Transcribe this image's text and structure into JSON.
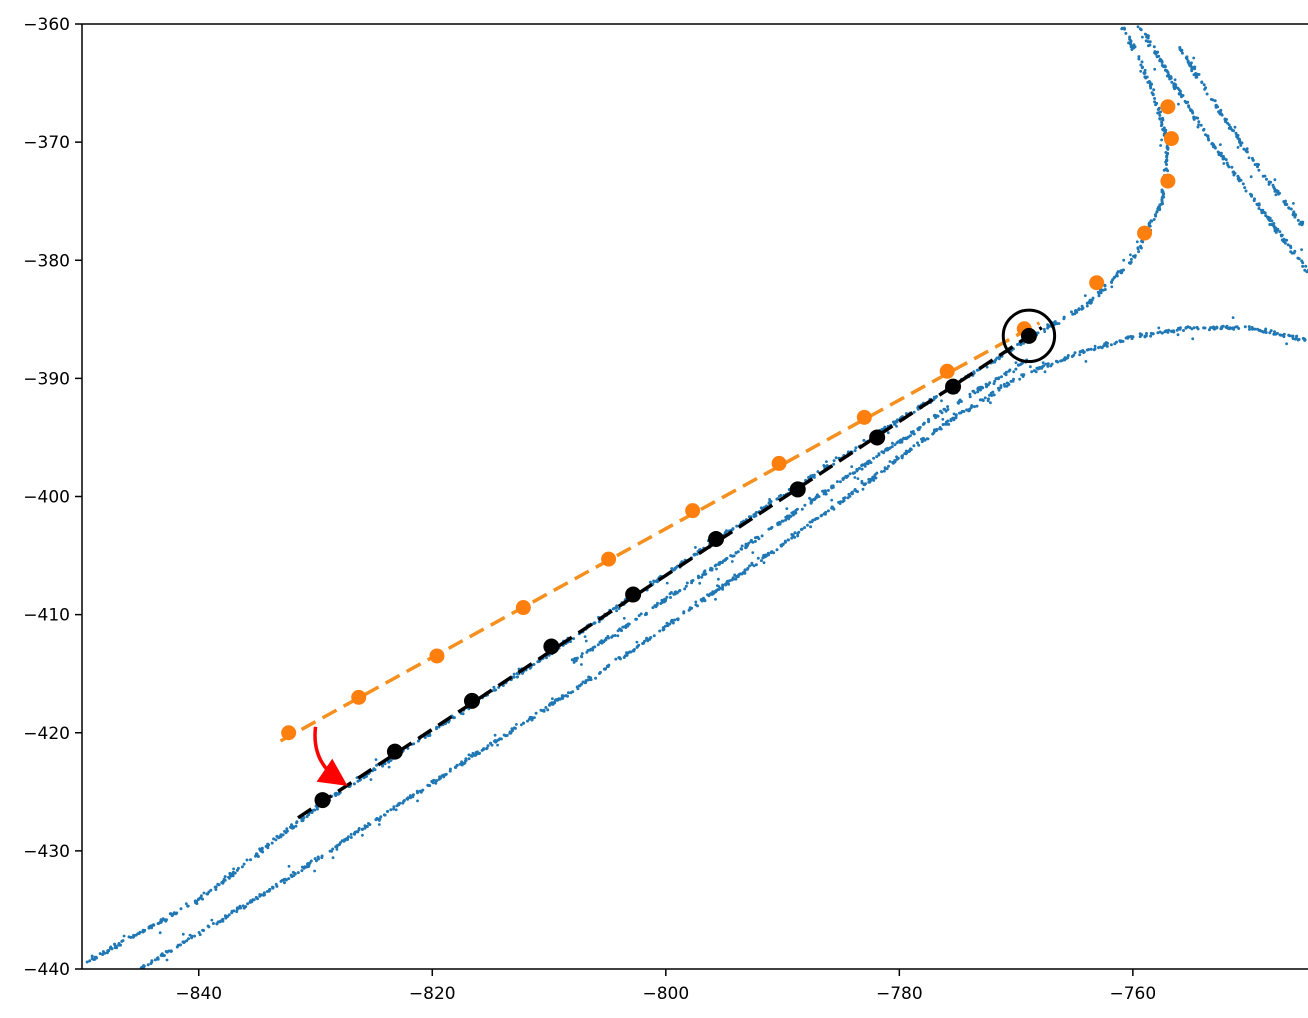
{
  "chart_data": {
    "type": "scatter",
    "title": "",
    "xlabel": "",
    "ylabel": "",
    "xlim": [
      -850,
      -745
    ],
    "ylim": [
      -440,
      -360
    ],
    "xticks": [
      -840,
      -820,
      -800,
      -780,
      -760
    ],
    "yticks": [
      -360,
      -370,
      -380,
      -390,
      -400,
      -410,
      -420,
      -430,
      -440
    ],
    "xtick_labels": [
      "−840",
      "−820",
      "−800",
      "−780",
      "−760"
    ],
    "ytick_labels": [
      "−360",
      "−370",
      "−380",
      "−390",
      "−400",
      "−410",
      "−420",
      "−430",
      "−440"
    ],
    "grid": false,
    "legend": "none",
    "colors": {
      "lanes": "#1f77b4",
      "orange": "#ff7f0e",
      "orange_line": "#f5901f",
      "black": "#000000",
      "arrow": "#ff0000"
    },
    "series": [
      {
        "marker": "orange-points",
        "points": [
          [
            -832.3,
            -420.0
          ],
          [
            -826.3,
            -417.0
          ],
          [
            -819.6,
            -413.5
          ],
          [
            -812.2,
            -409.4
          ],
          [
            -804.9,
            -405.3
          ],
          [
            -797.7,
            -401.2
          ],
          [
            -790.3,
            -397.2
          ],
          [
            -783.0,
            -393.3
          ],
          [
            -775.9,
            -389.4
          ],
          [
            -769.3,
            -385.8
          ],
          [
            -763.1,
            -381.9
          ],
          [
            -759.0,
            -377.7
          ],
          [
            -757.0,
            -373.3
          ],
          [
            -756.7,
            -369.7
          ],
          [
            -757.0,
            -367.0
          ]
        ]
      },
      {
        "marker": "orange-dashed-fit",
        "points": [
          [
            -833.0,
            -420.7
          ],
          [
            -768.0,
            -385.3
          ]
        ]
      },
      {
        "marker": "black-points",
        "points": [
          [
            -829.4,
            -425.7
          ],
          [
            -823.2,
            -421.6
          ],
          [
            -816.6,
            -417.3
          ],
          [
            -809.8,
            -412.7
          ],
          [
            -802.8,
            -408.3
          ],
          [
            -795.7,
            -403.6
          ],
          [
            -788.7,
            -399.4
          ],
          [
            -781.9,
            -395.0
          ],
          [
            -775.4,
            -390.7
          ],
          [
            -768.9,
            -386.4
          ]
        ]
      },
      {
        "marker": "black-dashed-fit",
        "points": [
          [
            -831.5,
            -427.2
          ],
          [
            -767.8,
            -385.7
          ]
        ]
      }
    ],
    "lanes": [
      {
        "points": [
          [
            -850,
            -439.6
          ],
          [
            -840,
            -434.2
          ],
          [
            -830,
            -426.4
          ],
          [
            -820,
            -419.9
          ],
          [
            -810,
            -413.3
          ],
          [
            -800,
            -406.6
          ],
          [
            -790,
            -399.9
          ],
          [
            -780,
            -393.5
          ],
          [
            -770,
            -387.3
          ],
          [
            -764,
            -383.8
          ],
          [
            -760,
            -380.0
          ],
          [
            -757.5,
            -375.0
          ],
          [
            -757.0,
            -370.0
          ],
          [
            -758.5,
            -365.0
          ],
          [
            -761.0,
            -360.0
          ]
        ]
      },
      {
        "points": [
          [
            -845,
            -440.0
          ],
          [
            -835,
            -434.0
          ],
          [
            -825,
            -427.5
          ],
          [
            -815,
            -421.0
          ],
          [
            -805,
            -414.5
          ],
          [
            -795,
            -407.5
          ],
          [
            -785,
            -400.5
          ],
          [
            -777,
            -394.5
          ],
          [
            -770,
            -390.0
          ],
          [
            -765,
            -388.0
          ],
          [
            -760,
            -386.5
          ],
          [
            -755,
            -385.7
          ],
          [
            -750,
            -385.7
          ],
          [
            -745,
            -386.8
          ]
        ]
      },
      {
        "points": [
          [
            -759.5,
            -360.0
          ],
          [
            -756.5,
            -365.0
          ],
          [
            -754.0,
            -369.0
          ],
          [
            -751.0,
            -373.0
          ],
          [
            -748.0,
            -377.0
          ],
          [
            -745.0,
            -381.0
          ]
        ]
      },
      {
        "points": [
          [
            -756.0,
            -362.0
          ],
          [
            -752.5,
            -367.5
          ],
          [
            -749.0,
            -372.5
          ],
          [
            -745.5,
            -377.0
          ]
        ]
      },
      {
        "points": [
          [
            -808,
            -414.0
          ],
          [
            -795,
            -405.4
          ],
          [
            -785,
            -398.7
          ],
          [
            -775,
            -392.0
          ],
          [
            -769,
            -388.5
          ]
        ]
      }
    ],
    "annotations": [
      {
        "type": "circle",
        "center": [
          -768.9,
          -386.4
        ],
        "radius_x_units": 2.2
      },
      {
        "type": "curved-arrow",
        "from": [
          -830.0,
          -419.5
        ],
        "to": [
          -828.0,
          -424.0
        ]
      }
    ]
  }
}
